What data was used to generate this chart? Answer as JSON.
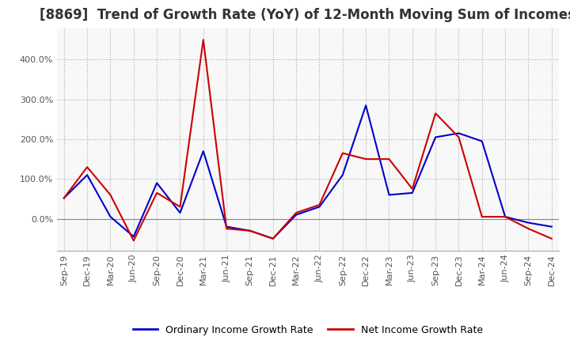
{
  "title": "[8869]  Trend of Growth Rate (YoY) of 12-Month Moving Sum of Incomes",
  "legend_labels": [
    "Ordinary Income Growth Rate",
    "Net Income Growth Rate"
  ],
  "line_colors": [
    "#0000CC",
    "#CC0000"
  ],
  "x_labels": [
    "Sep-19",
    "Dec-19",
    "Mar-20",
    "Jun-20",
    "Sep-20",
    "Dec-20",
    "Mar-21",
    "Jun-21",
    "Sep-21",
    "Dec-21",
    "Mar-22",
    "Jun-22",
    "Sep-22",
    "Dec-22",
    "Mar-23",
    "Jun-23",
    "Sep-23",
    "Dec-23",
    "Mar-24",
    "Jun-24",
    "Sep-24",
    "Dec-24"
  ],
  "ordinary_income": [
    52,
    110,
    5,
    -45,
    90,
    15,
    170,
    -20,
    -30,
    -50,
    10,
    30,
    110,
    285,
    60,
    65,
    205,
    215,
    195,
    5,
    -10,
    -20
  ],
  "net_income": [
    52,
    130,
    60,
    -55,
    65,
    30,
    450,
    -25,
    -30,
    -50,
    15,
    35,
    165,
    150,
    150,
    75,
    265,
    205,
    5,
    5,
    -25,
    -50
  ],
  "ylim": [
    -80,
    480
  ],
  "yticks": [
    0,
    100,
    200,
    300,
    400
  ],
  "background_color": "#FFFFFF",
  "plot_bg_color": "#F8F8F8",
  "grid_color": "#AAAAAA",
  "title_fontsize": 12,
  "tick_fontsize": 8,
  "legend_fontsize": 9
}
